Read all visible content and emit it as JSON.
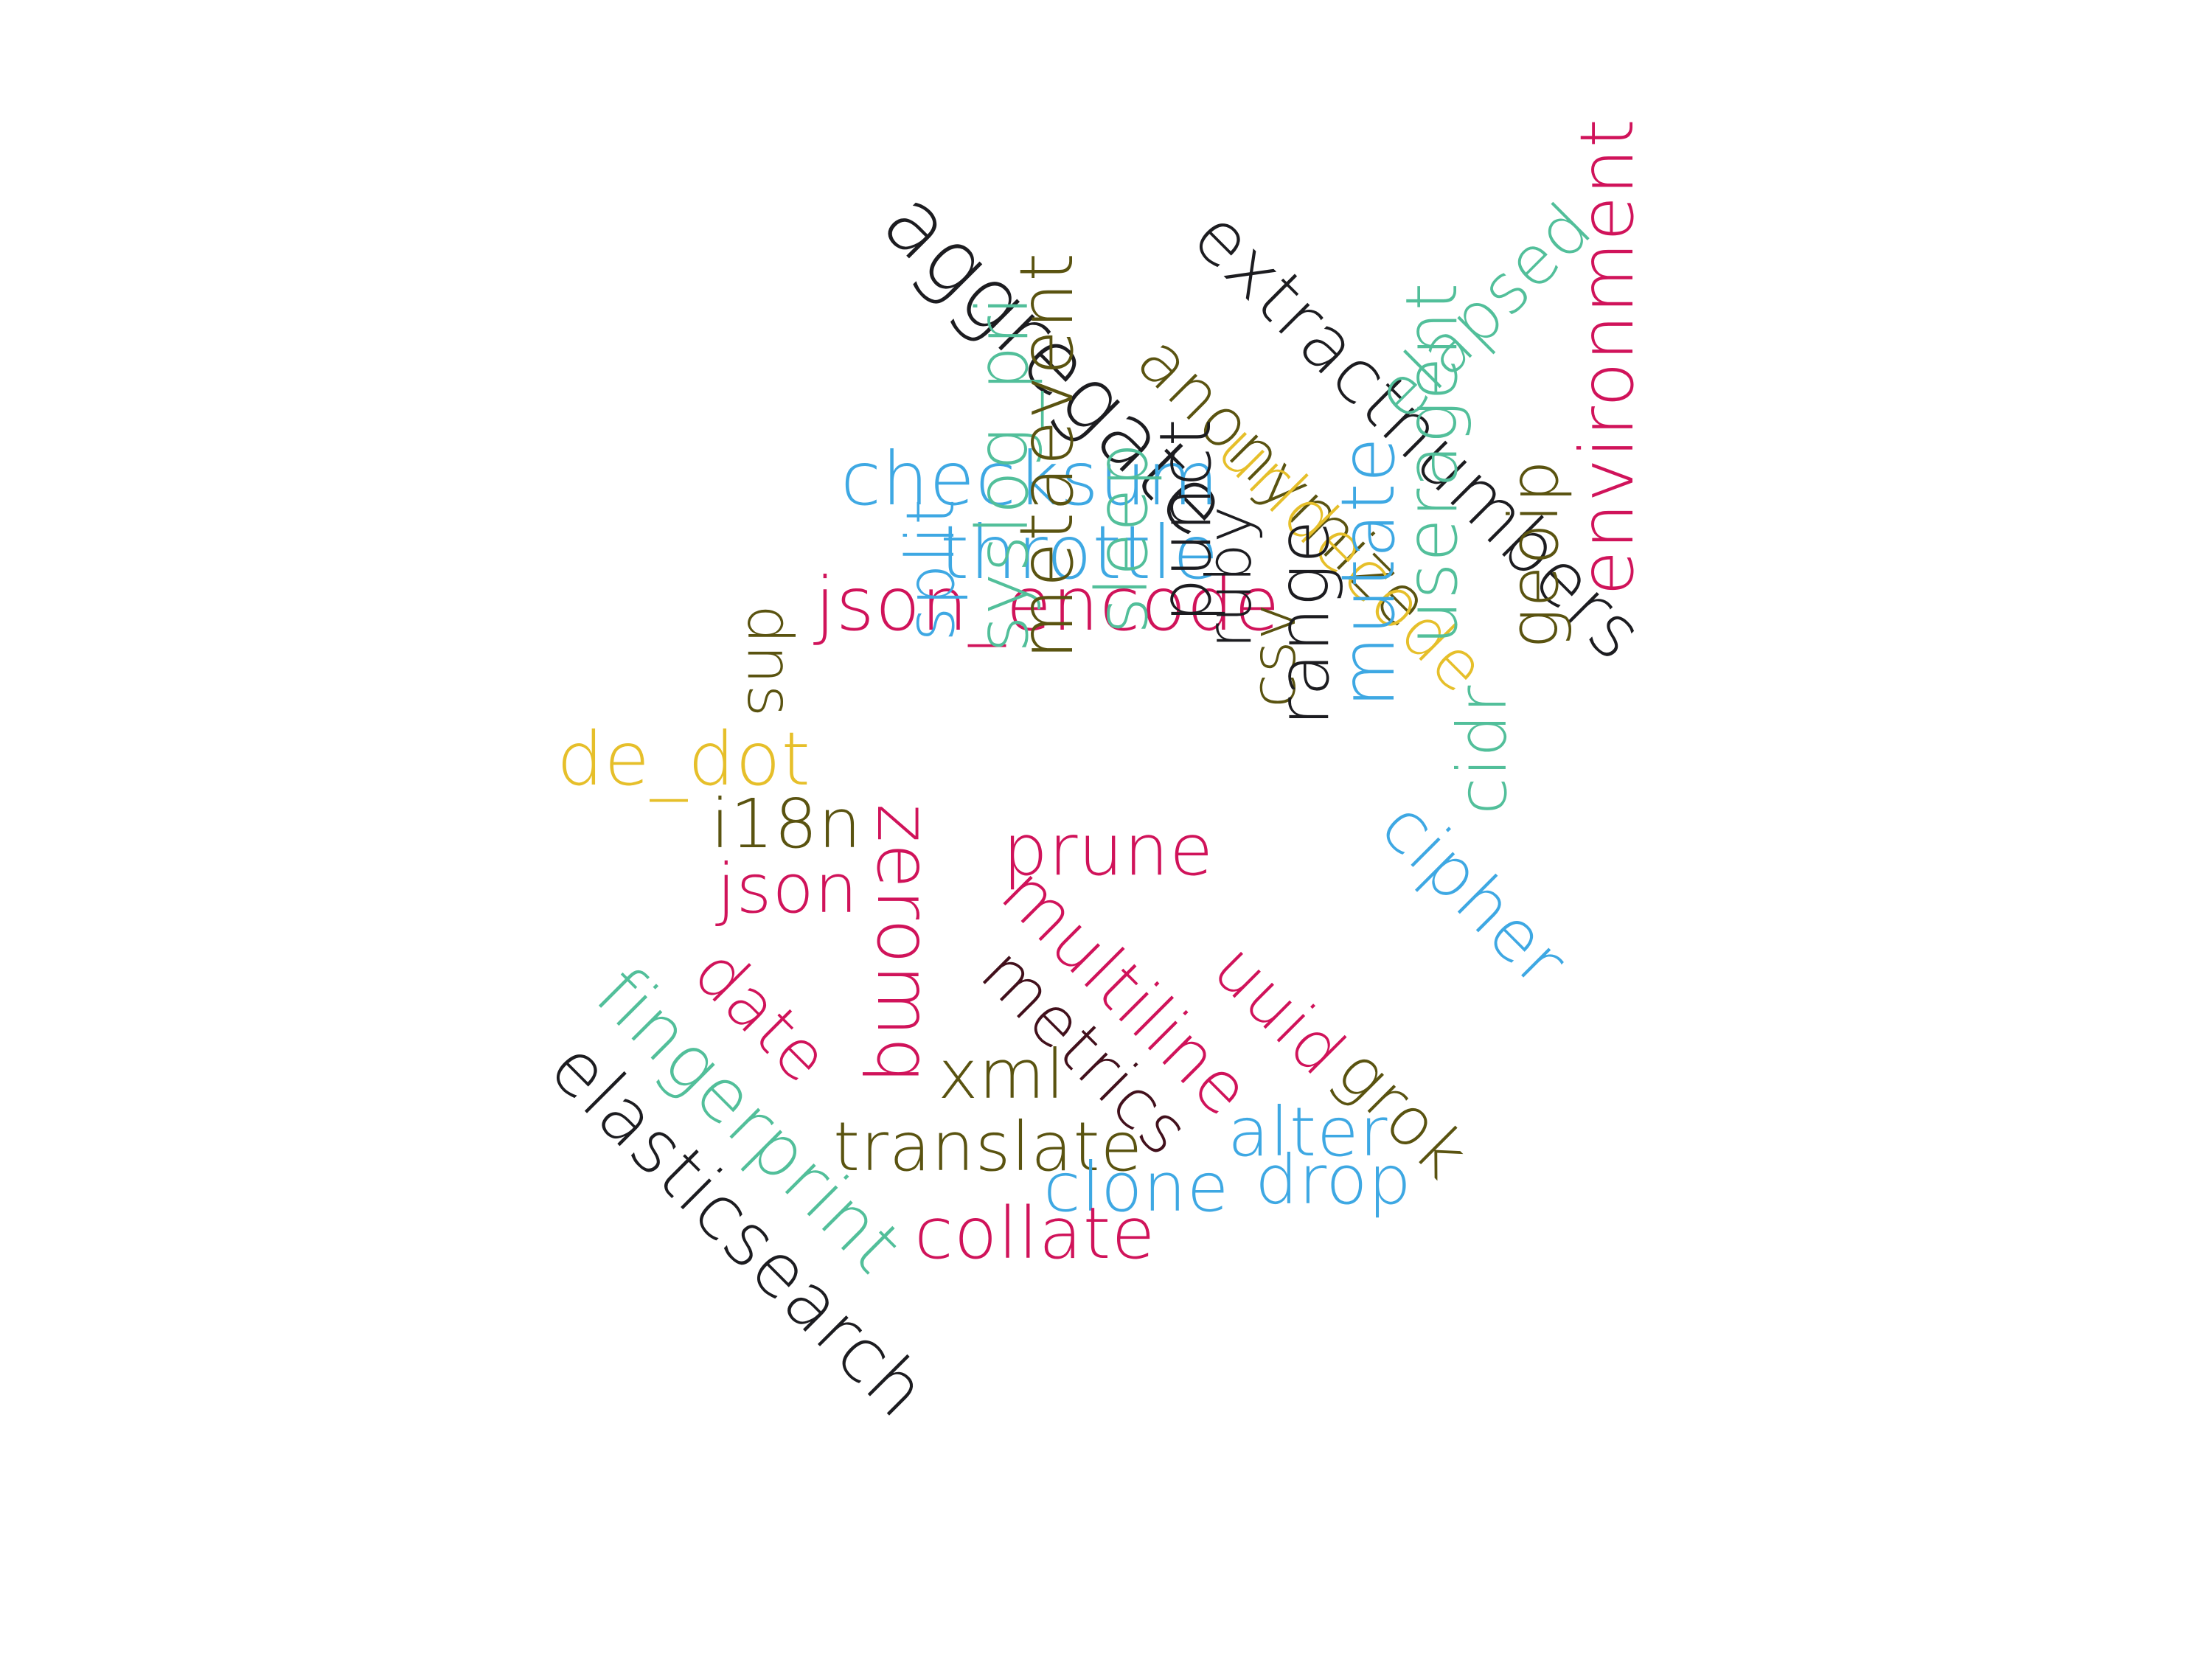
{
  "colors": {
    "black": "#1c1c20",
    "olive": "#5a5310",
    "teal": "#52bf9a",
    "blue": "#3ea8e3",
    "yellow": "#e6bf2a",
    "crimson": "#d0135a",
    "maroon": "#42101c"
  },
  "words": [
    {
      "id": "aggregate",
      "text": "aggregate",
      "color": "black"
    },
    {
      "id": "extractnumbers",
      "text": "extractnumbers",
      "color": "black"
    },
    {
      "id": "anonymize",
      "text": "anonymize",
      "color": "olive"
    },
    {
      "id": "elapsed",
      "text": "elapsed",
      "color": "teal"
    },
    {
      "id": "checksum",
      "text": "checksum",
      "color": "blue"
    },
    {
      "id": "urldecode",
      "text": "urldecode",
      "color": "yellow"
    },
    {
      "id": "throttle",
      "text": "throttle",
      "color": "blue"
    },
    {
      "id": "json_encode",
      "text": "json_encode",
      "color": "crimson"
    },
    {
      "id": "dns",
      "text": "dns",
      "color": "olive"
    },
    {
      "id": "split",
      "text": "split",
      "color": "blue"
    },
    {
      "id": "de_dot",
      "text": "de_dot",
      "color": "yellow"
    },
    {
      "id": "i18n",
      "text": "i18n",
      "color": "olive"
    },
    {
      "id": "zeromq",
      "text": "zeromq",
      "color": "crimson"
    },
    {
      "id": "syslog_pri",
      "text": "syslog_pri",
      "color": "teal"
    },
    {
      "id": "metaevent",
      "text": "metaevent",
      "color": "olive"
    },
    {
      "id": "sleep",
      "text": "sleep",
      "color": "teal"
    },
    {
      "id": "punct",
      "text": "punct",
      "color": "black"
    },
    {
      "id": "ruby",
      "text": "ruby",
      "color": "black"
    },
    {
      "id": "csv",
      "text": "csv",
      "color": "olive"
    },
    {
      "id": "range",
      "text": "range",
      "color": "black"
    },
    {
      "id": "mutate",
      "text": "mutate",
      "color": "blue"
    },
    {
      "id": "useragent",
      "text": "useragent",
      "color": "teal"
    },
    {
      "id": "cidr",
      "text": "cidr",
      "color": "teal"
    },
    {
      "id": "cipher",
      "text": "cipher",
      "color": "blue"
    },
    {
      "id": "geoip",
      "text": "geoip",
      "color": "olive"
    },
    {
      "id": "environment",
      "text": "environment",
      "color": "crimson"
    },
    {
      "id": "json",
      "text": "json",
      "color": "crimson"
    },
    {
      "id": "date",
      "text": "date",
      "color": "crimson"
    },
    {
      "id": "prune",
      "text": "prune",
      "color": "crimson"
    },
    {
      "id": "multiline",
      "text": "multiline",
      "color": "crimson"
    },
    {
      "id": "metrics",
      "text": "metrics",
      "color": "maroon"
    },
    {
      "id": "uuid",
      "text": "uuid",
      "color": "crimson"
    },
    {
      "id": "grok",
      "text": "grok",
      "color": "olive"
    },
    {
      "id": "fingerprint",
      "text": "fingerprint",
      "color": "teal"
    },
    {
      "id": "elasticsearch",
      "text": "elasticsearch",
      "color": "black"
    },
    {
      "id": "xml",
      "text": "xml",
      "color": "olive"
    },
    {
      "id": "translate",
      "text": "translate",
      "color": "olive"
    },
    {
      "id": "alter",
      "text": "alter",
      "color": "blue"
    },
    {
      "id": "clone",
      "text": "clone",
      "color": "blue"
    },
    {
      "id": "drop",
      "text": "drop",
      "color": "blue"
    },
    {
      "id": "collate",
      "text": "collate",
      "color": "crimson"
    }
  ]
}
